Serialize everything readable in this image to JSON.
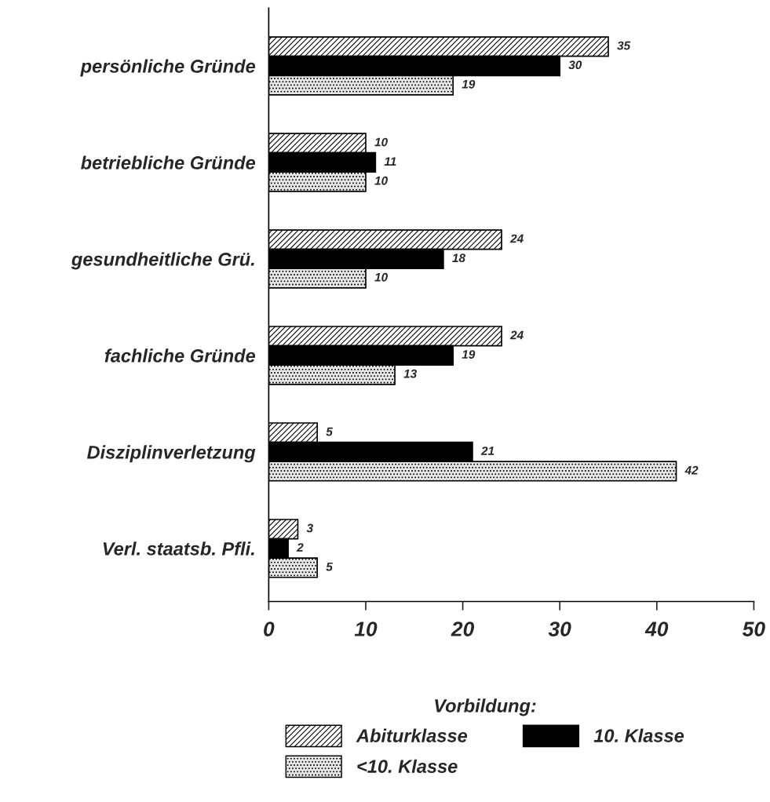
{
  "chart_data": {
    "type": "bar",
    "orientation": "horizontal",
    "categories": [
      "persönliche Gründe",
      "betriebliche Gründe",
      "gesundheitliche Grü.",
      "fachliche Gründe",
      "Disziplinverletzung",
      "Verl. staatsb. Pfli."
    ],
    "series": [
      {
        "name": "Abiturklasse",
        "values": [
          35,
          10,
          24,
          24,
          5,
          3
        ]
      },
      {
        "name": "10. Klasse",
        "color": "#000000",
        "values": [
          30,
          11,
          18,
          19,
          21,
          2
        ]
      },
      {
        "name": "<10. Klasse",
        "values": [
          19,
          10,
          10,
          13,
          42,
          5
        ]
      }
    ],
    "xlim": [
      0,
      50
    ],
    "xticks": [
      0,
      10,
      20,
      30,
      40,
      50
    ],
    "data_labels": true,
    "legend": "bottom",
    "legend_title": "Vorbildung:",
    "grid": false
  }
}
